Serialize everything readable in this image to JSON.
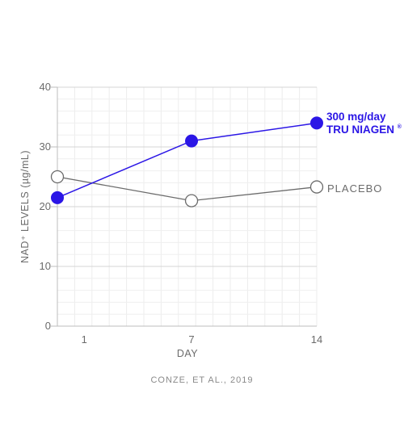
{
  "chart_data": {
    "type": "line",
    "x": [
      1,
      7,
      14
    ],
    "x_tick_labels": [
      "1",
      "7",
      "14"
    ],
    "xlabel": "DAY",
    "ylabel": "NAD⁺ LEVELS (µg/mL)",
    "ylim": [
      0,
      40
    ],
    "y_ticks": [
      0,
      10,
      20,
      30,
      40
    ],
    "grid": true,
    "series": [
      {
        "name_line1": "300 mg/day",
        "name_line2": "TRU NIAGEN",
        "name_mark": "®",
        "values": [
          21.5,
          31,
          34
        ],
        "color": "#2b16e6",
        "marker": "filled-circle"
      },
      {
        "name": "PLACEBO",
        "values": [
          25,
          21,
          23.3
        ],
        "color": "#6b6b6b",
        "marker": "hollow-circle"
      }
    ],
    "source": "CONZE, ET AL., 2019"
  }
}
